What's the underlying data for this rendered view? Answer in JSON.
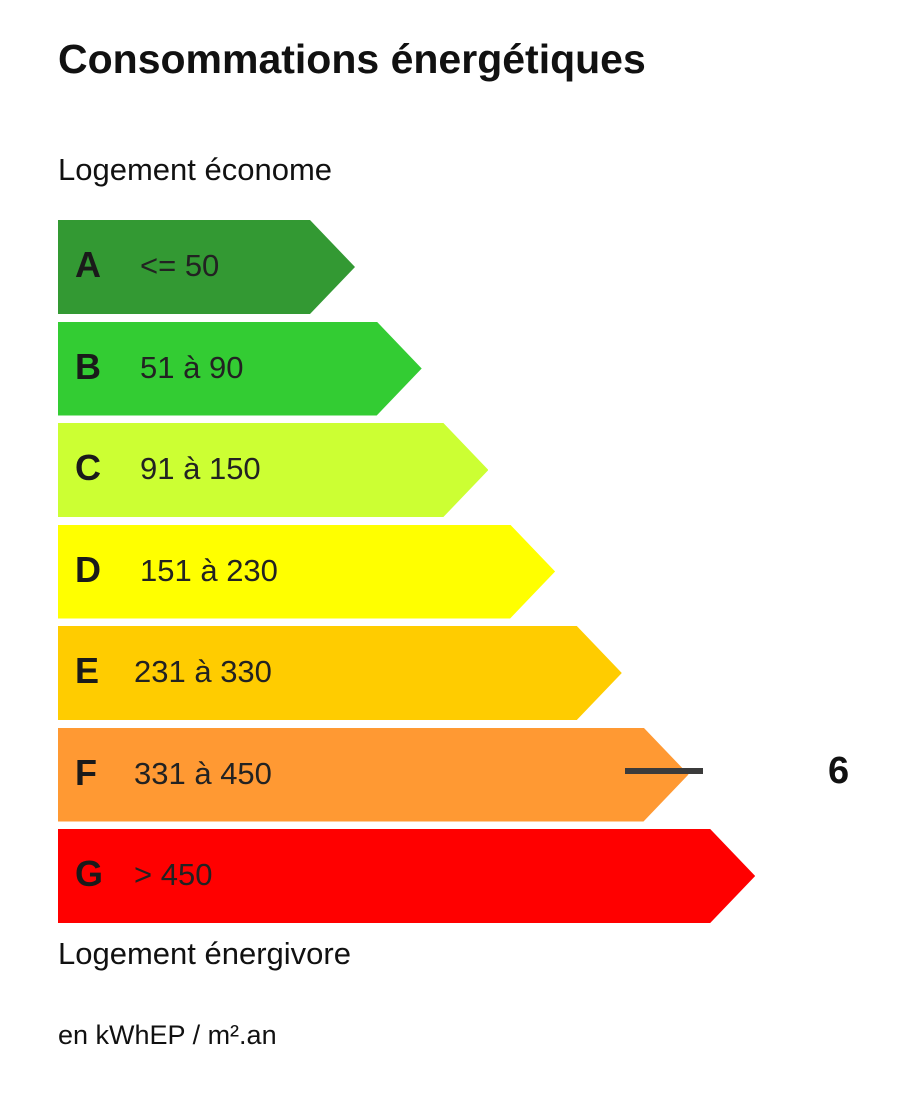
{
  "title": "Consommations énergétiques",
  "top_label": "Logement économe",
  "bottom_label": "Logement énergivore",
  "unit": "en kWhEP / m².an",
  "chart_data": {
    "type": "bar",
    "categories": [
      "A",
      "B",
      "C",
      "D",
      "E",
      "F",
      "G"
    ],
    "ranges": [
      "<= 50",
      "51 à 90",
      "91 à 150",
      "151 à 230",
      "231 à 330",
      "331 à 450",
      "> 450"
    ],
    "colors": [
      "#339933",
      "#33cc33",
      "#ccff33",
      "#ffff00",
      "#ffcc00",
      "#ff9933",
      "#ff0000"
    ],
    "current_class": "F",
    "current_value": "6"
  }
}
